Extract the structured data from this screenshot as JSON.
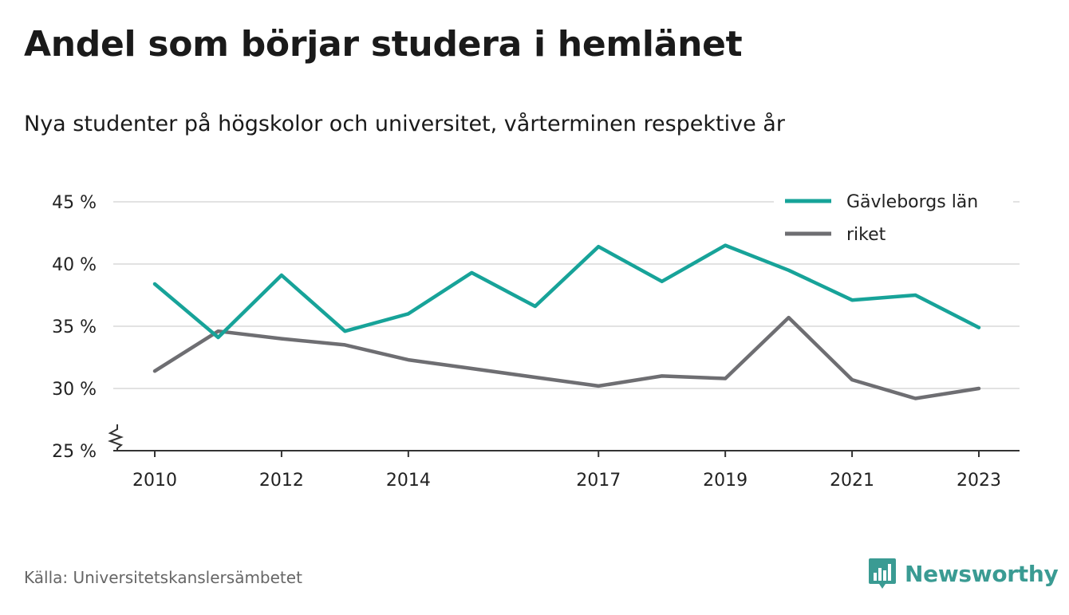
{
  "header": {
    "title": "Andel som börjar studera i hemlänet",
    "subtitle": "Nya studenter på högskolor och universitet, vårterminen respektive år"
  },
  "footer": {
    "source": "Källa: Universitetskanslersämbetet",
    "brand": "Newsworthy",
    "brand_icon": "bar-chart-speech-bubble-icon",
    "brand_color": "#3a9b93"
  },
  "chart_data": {
    "type": "line",
    "title": "Andel som börjar studera i hemlänet",
    "subtitle": "Nya studenter på högskolor och universitet, vårterminen respektive år",
    "xlabel": "",
    "ylabel": "",
    "x": [
      2010,
      2011,
      2012,
      2013,
      2014,
      2015,
      2016,
      2017,
      2018,
      2019,
      2020,
      2021,
      2022,
      2023
    ],
    "xticks": [
      2010,
      2012,
      2014,
      2017,
      2019,
      2021,
      2023
    ],
    "ylim": [
      25,
      45
    ],
    "yticks": [
      25,
      30,
      35,
      40,
      45
    ],
    "ytick_labels": [
      "25 %",
      "30 %",
      "35 %",
      "40 %",
      "45 %"
    ],
    "y_axis_break": true,
    "grid": true,
    "legend_position": "top-right",
    "series": [
      {
        "name": "Gävleborgs län",
        "color": "#17a399",
        "values": [
          38.4,
          34.1,
          39.1,
          34.6,
          36.0,
          39.3,
          36.6,
          41.4,
          38.6,
          41.5,
          39.5,
          37.1,
          37.5,
          34.9
        ]
      },
      {
        "name": "riket",
        "color": "#6e6e72",
        "values": [
          31.4,
          34.6,
          34.0,
          33.5,
          32.3,
          31.6,
          30.9,
          30.2,
          31.0,
          30.8,
          35.7,
          30.7,
          29.2,
          30.0
        ]
      }
    ]
  }
}
